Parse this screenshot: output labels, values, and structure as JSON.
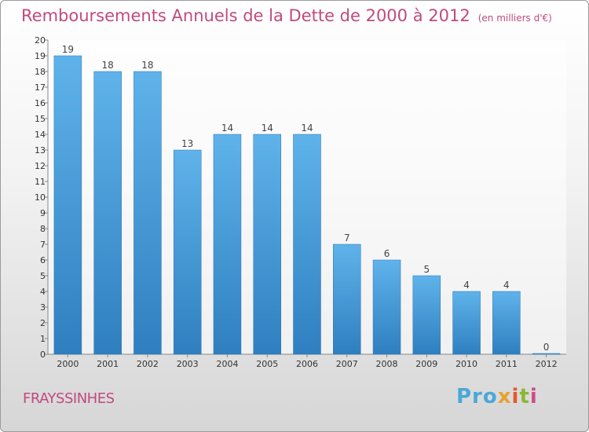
{
  "title": "Remboursements Annuels de la Dette de 2000 à 2012",
  "subtitle": "(en milliers d'€)",
  "commune": "FRAYSSINHES",
  "logo": {
    "p1": "Pro",
    "p2": "x",
    "p3": "i",
    "p4": "t",
    "p5": "i"
  },
  "colors": {
    "bar": "#4a9fdf",
    "title": "#c04a7f"
  },
  "chart_data": {
    "type": "bar",
    "title": "Remboursements Annuels de la Dette de 2000 à 2012",
    "subtitle": "(en milliers d'€)",
    "categories": [
      "2000",
      "2001",
      "2002",
      "2003",
      "2004",
      "2005",
      "2006",
      "2007",
      "2008",
      "2009",
      "2010",
      "2011",
      "2012"
    ],
    "values": [
      19,
      18,
      18,
      13,
      14,
      14,
      14,
      7,
      6,
      5,
      4,
      4,
      0
    ],
    "ylim": [
      0,
      20
    ],
    "yticks": [
      0,
      1,
      2,
      3,
      4,
      5,
      6,
      7,
      8,
      9,
      10,
      11,
      12,
      13,
      14,
      15,
      16,
      17,
      18,
      19,
      20
    ],
    "grid": false,
    "legend": "none"
  }
}
